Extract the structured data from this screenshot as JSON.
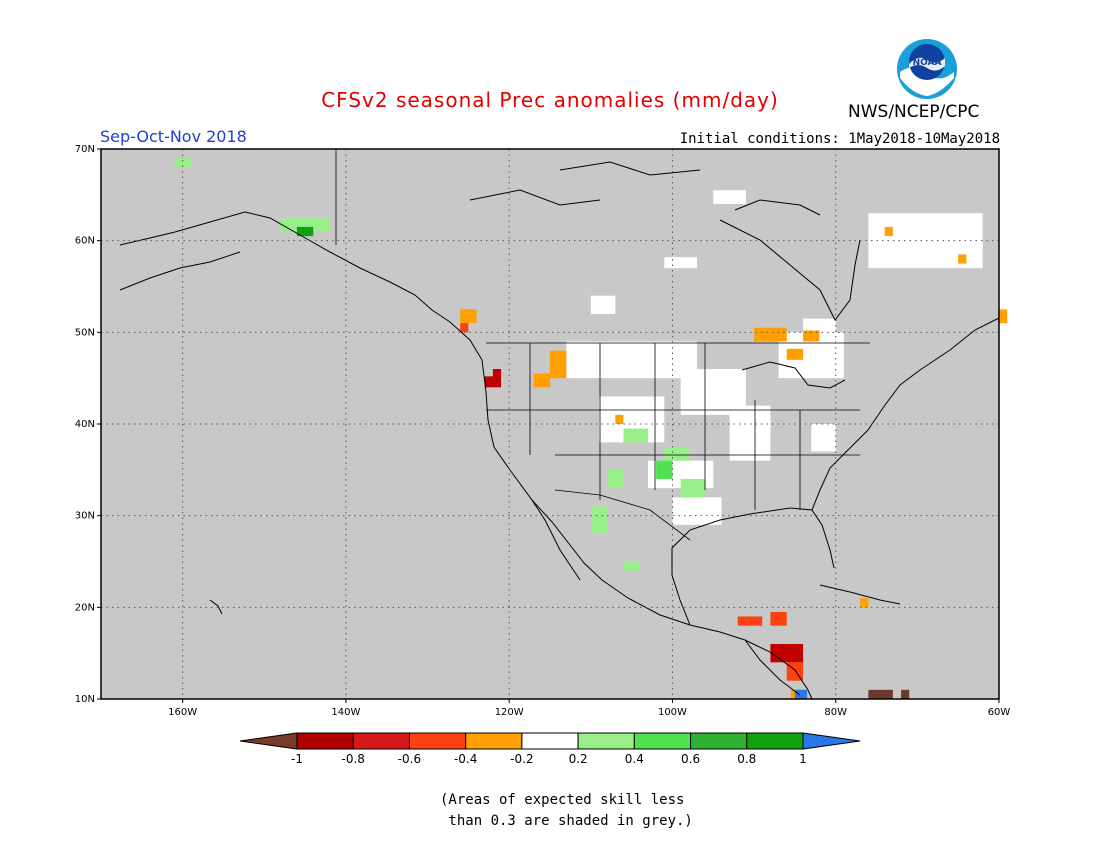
{
  "title": "CFSv2 seasonal Prec anomalies (mm/day)",
  "season": "Sep-Oct-Nov 2018",
  "initial_conditions": "Initial conditions: 1May2018-10May2018",
  "agency": "NWS/NCEP/CPC",
  "logo_text": "NOAA",
  "map": {
    "lon_range": [
      -170,
      -60
    ],
    "lat_range": [
      10,
      70
    ],
    "background_color": "#c8c8c8",
    "y_ticks": [
      {
        "lat": 70,
        "label": "70N"
      },
      {
        "lat": 60,
        "label": "60N"
      },
      {
        "lat": 50,
        "label": "50N"
      },
      {
        "lat": 40,
        "label": "40N"
      },
      {
        "lat": 30,
        "label": "30N"
      },
      {
        "lat": 20,
        "label": "20N"
      },
      {
        "lat": 10,
        "label": "10N"
      }
    ],
    "x_ticks": [
      {
        "lon": -160,
        "label": "160W"
      },
      {
        "lon": -140,
        "label": "140W"
      },
      {
        "lon": -120,
        "label": "120W"
      },
      {
        "lon": -100,
        "label": "100W"
      },
      {
        "lon": -80,
        "label": "80W"
      },
      {
        "lon": -60,
        "label": "60W"
      }
    ]
  },
  "colorbar": {
    "labels": [
      "-1",
      "-0.8",
      "-0.6",
      "-0.4",
      "-0.2",
      "0.2",
      "0.4",
      "0.6",
      "0.8",
      "1"
    ],
    "colors": [
      "#7a3a2a",
      "#b00000",
      "#d81818",
      "#ff4010",
      "#ffa000",
      "#ffffff",
      "#98ee88",
      "#50e050",
      "#30b030",
      "#10a010",
      "#2878e8"
    ]
  },
  "note_line1": "(Areas of expected skill less",
  "note_line2": " than 0.3 are shaded in grey.)",
  "anomaly_cells": [
    {
      "lon": -101,
      "lat": 57,
      "w": 4,
      "h": 1.2,
      "cat": "white"
    },
    {
      "lon": -95,
      "lat": 64,
      "w": 4,
      "h": 1.5,
      "cat": "white"
    },
    {
      "lon": -76,
      "lat": 57,
      "w": 14,
      "h": 6,
      "cat": "white"
    },
    {
      "lon": -110,
      "lat": 52,
      "w": 3,
      "h": 2,
      "cat": "white"
    },
    {
      "lon": -113,
      "lat": 45,
      "w": 16,
      "h": 4,
      "cat": "white"
    },
    {
      "lon": -109,
      "lat": 38,
      "w": 8,
      "h": 5,
      "cat": "white"
    },
    {
      "lon": -99,
      "lat": 41,
      "w": 8,
      "h": 5,
      "cat": "white"
    },
    {
      "lon": -93,
      "lat": 36,
      "w": 5,
      "h": 6,
      "cat": "white"
    },
    {
      "lon": -87,
      "lat": 45,
      "w": 8,
      "h": 5,
      "cat": "white"
    },
    {
      "lon": -103,
      "lat": 33,
      "w": 8,
      "h": 3,
      "cat": "white"
    },
    {
      "lon": -100,
      "lat": 29,
      "w": 6,
      "h": 3,
      "cat": "white"
    },
    {
      "lon": -83,
      "lat": 37,
      "w": 3,
      "h": 3,
      "cat": "white"
    },
    {
      "lon": -84,
      "lat": 50,
      "w": 4,
      "h": 1.5,
      "cat": "white"
    },
    {
      "lon": -90,
      "lat": 49,
      "w": 4,
      "h": 1.5,
      "cat": "orange"
    },
    {
      "lon": -86,
      "lat": 47,
      "w": 2,
      "h": 1.2,
      "cat": "orange"
    },
    {
      "lon": -84,
      "lat": 49,
      "w": 2,
      "h": 1.2,
      "cat": "orange"
    },
    {
      "lon": -115,
      "lat": 45,
      "w": 2,
      "h": 3,
      "cat": "orange"
    },
    {
      "lon": -117,
      "lat": 44,
      "w": 2,
      "h": 1.5,
      "cat": "orange"
    },
    {
      "lon": -126,
      "lat": 51,
      "w": 2,
      "h": 1.5,
      "cat": "orange"
    },
    {
      "lon": -107,
      "lat": 40,
      "w": 1,
      "h": 1,
      "cat": "orange"
    },
    {
      "lon": -74,
      "lat": 60.5,
      "w": 1,
      "h": 1,
      "cat": "orange"
    },
    {
      "lon": -65,
      "lat": 57.5,
      "w": 1,
      "h": 1,
      "cat": "orange"
    },
    {
      "lon": -60,
      "lat": 51,
      "w": 1,
      "h": 1.5,
      "cat": "orange"
    },
    {
      "lon": -77,
      "lat": 20,
      "w": 1,
      "h": 1,
      "cat": "orange"
    },
    {
      "lon": -123,
      "lat": 44,
      "w": 2,
      "h": 1.2,
      "cat": "dred"
    },
    {
      "lon": -122,
      "lat": 45,
      "w": 1,
      "h": 1,
      "cat": "dred"
    },
    {
      "lon": -126,
      "lat": 50,
      "w": 1,
      "h": 1,
      "cat": "red"
    },
    {
      "lon": -106,
      "lat": 38,
      "w": 3,
      "h": 1.5,
      "cat": "lgreen"
    },
    {
      "lon": -101,
      "lat": 36,
      "w": 3,
      "h": 1.5,
      "cat": "lgreen"
    },
    {
      "lon": -108,
      "lat": 33,
      "w": 2,
      "h": 2,
      "cat": "lgreen"
    },
    {
      "lon": -99,
      "lat": 32,
      "w": 3,
      "h": 2,
      "cat": "lgreen"
    },
    {
      "lon": -110,
      "lat": 28,
      "w": 2,
      "h": 3,
      "cat": "lgreen"
    },
    {
      "lon": -106,
      "lat": 24,
      "w": 2,
      "h": 1,
      "cat": "lgreen"
    },
    {
      "lon": -161,
      "lat": 68,
      "w": 2,
      "h": 1,
      "cat": "lgreen"
    },
    {
      "lon": -148,
      "lat": 61,
      "w": 6,
      "h": 1.5,
      "cat": "lgreen"
    },
    {
      "lon": -146,
      "lat": 60.5,
      "w": 2,
      "h": 1,
      "cat": "green"
    },
    {
      "lon": -102,
      "lat": 34,
      "w": 2,
      "h": 2,
      "cat": "mgreen"
    },
    {
      "lon": -92,
      "lat": 18,
      "w": 3,
      "h": 1,
      "cat": "red"
    },
    {
      "lon": -88,
      "lat": 18,
      "w": 2,
      "h": 1.5,
      "cat": "red"
    },
    {
      "lon": -88,
      "lat": 14,
      "w": 4,
      "h": 2,
      "cat": "dred"
    },
    {
      "lon": -86,
      "lat": 12,
      "w": 2,
      "h": 2,
      "cat": "red"
    },
    {
      "lon": -85.5,
      "lat": 10,
      "w": 1,
      "h": 1,
      "cat": "orange"
    },
    {
      "lon": -85,
      "lat": 10,
      "w": 1.5,
      "h": 1,
      "cat": "blue"
    },
    {
      "lon": -76,
      "lat": 10,
      "w": 3,
      "h": 1,
      "cat": "brown"
    },
    {
      "lon": -72,
      "lat": 10,
      "w": 1,
      "h": 1,
      "cat": "brown"
    }
  ]
}
